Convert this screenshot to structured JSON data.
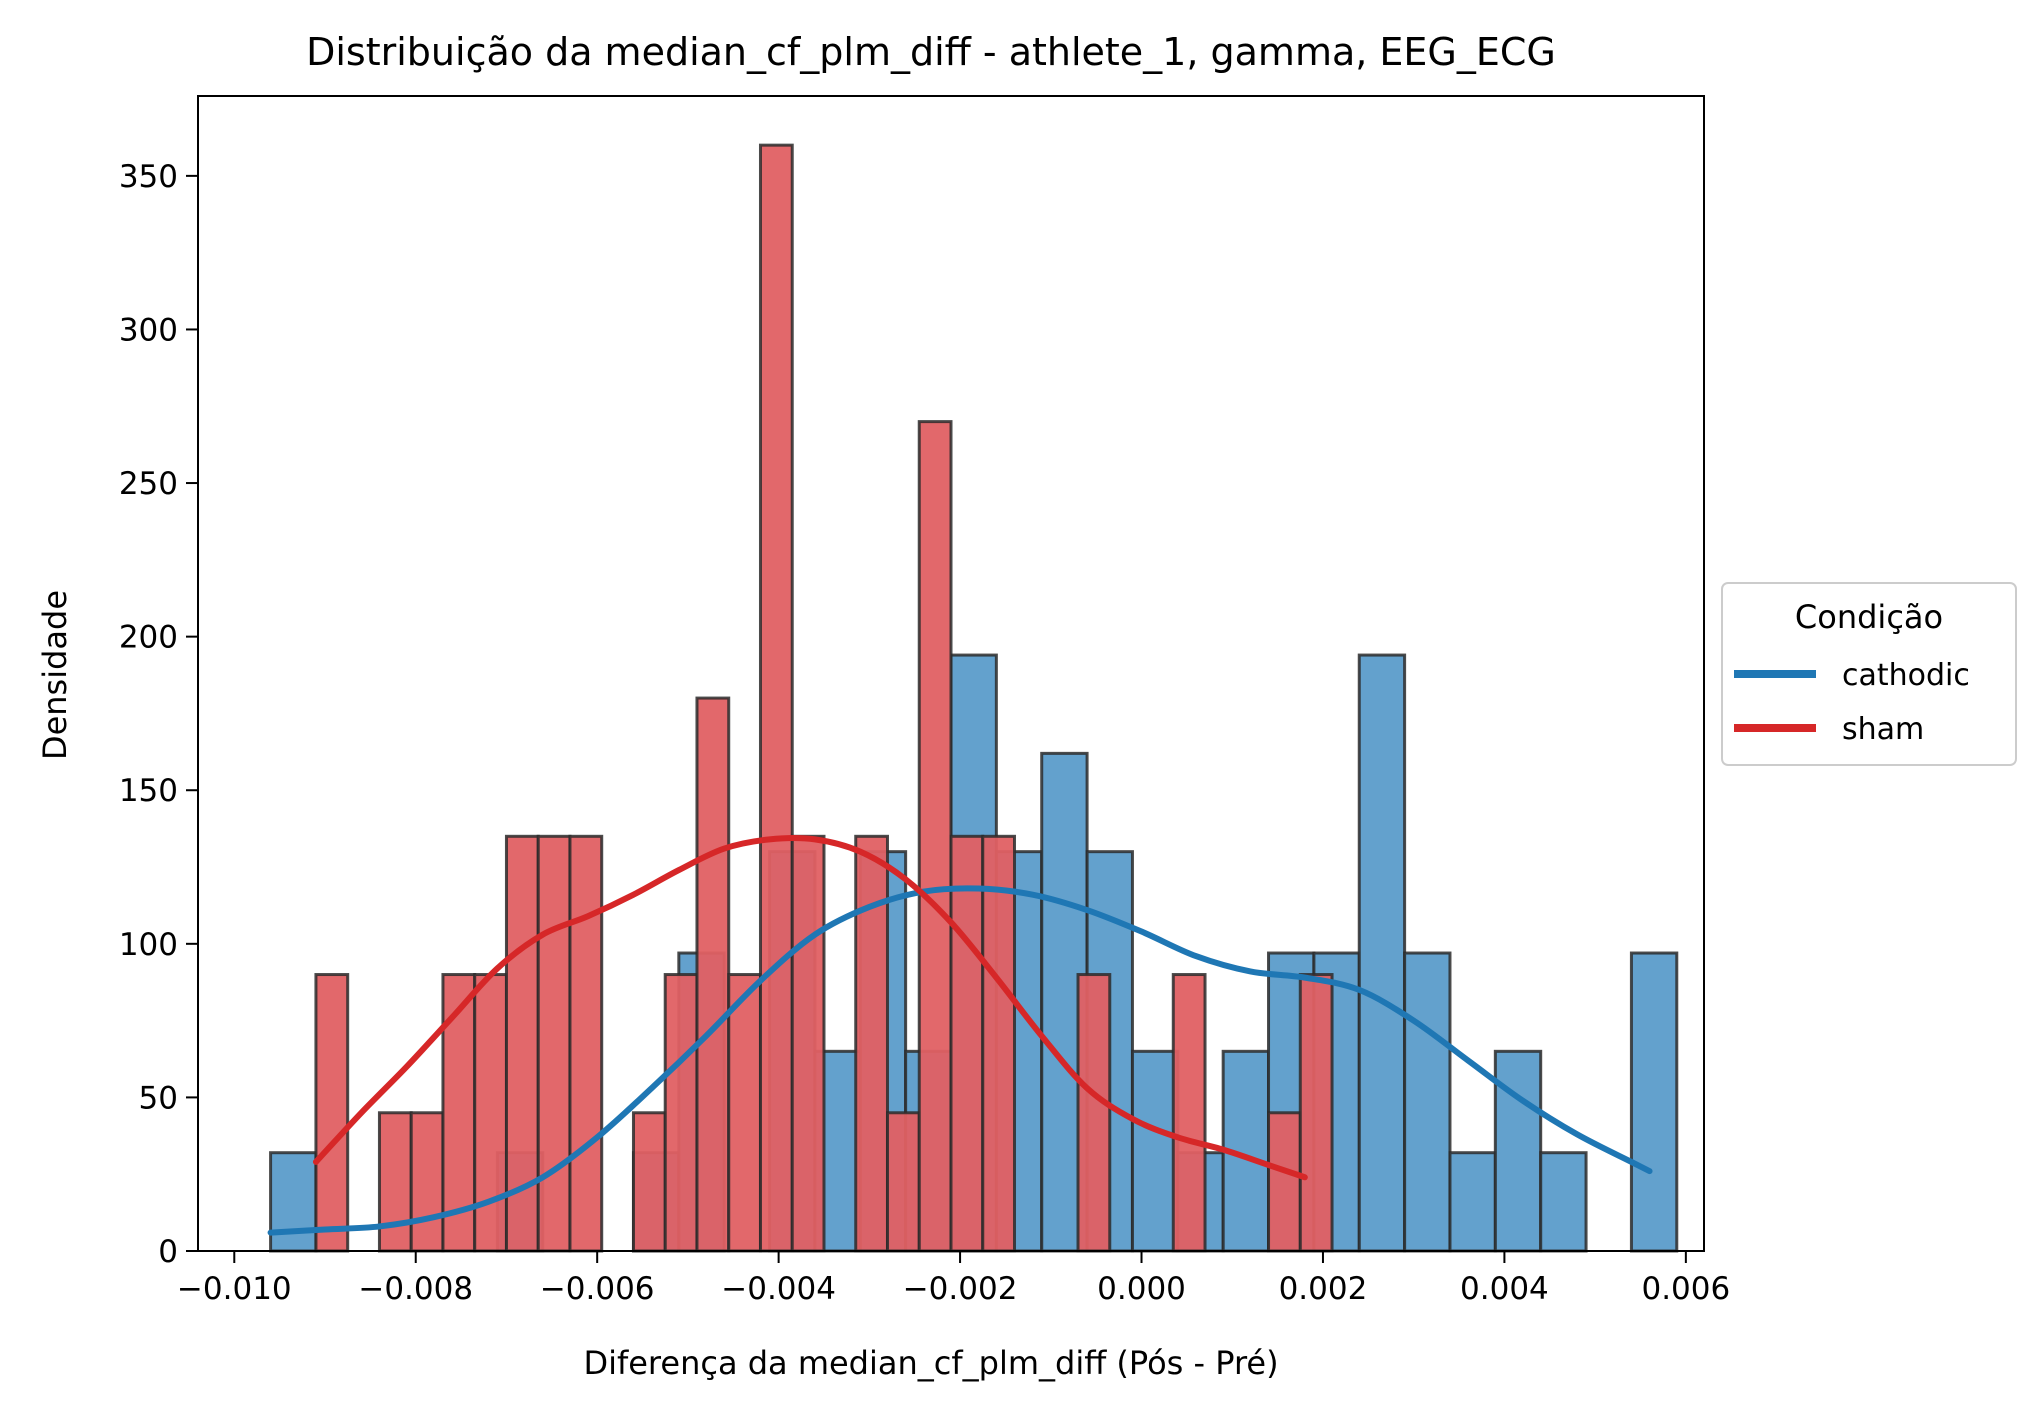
{
  "chart_data": {
    "type": "histogram",
    "title": "Distribuição da median_cf_plm_diff - athlete_1, gamma, EEG_ECG",
    "xlabel": "Diferença da median_cf_plm_diff (Pós - Pré)",
    "ylabel": "Densidade",
    "xlim": [
      -0.0104,
      0.0062
    ],
    "ylim": [
      0,
      376
    ],
    "x_ticks": [
      -0.01,
      -0.008,
      -0.006,
      -0.004,
      -0.002,
      0.0,
      0.002,
      0.004,
      0.006
    ],
    "x_tick_labels": [
      "−0.010",
      "−0.008",
      "−0.006",
      "−0.004",
      "−0.002",
      "0.000",
      "0.002",
      "0.004",
      "0.006"
    ],
    "y_ticks": [
      0,
      50,
      100,
      150,
      200,
      250,
      300,
      350
    ],
    "y_tick_labels": [
      "0",
      "50",
      "100",
      "150",
      "200",
      "250",
      "300",
      "350"
    ],
    "legend": {
      "title": "Condição",
      "placement": "center-right outside",
      "entries": [
        "cathodic",
        "sham"
      ]
    },
    "series": [
      {
        "name": "cathodic",
        "color": "#1f77b4",
        "fill": "#5b9cca",
        "bins": [
          {
            "x0": -0.0096,
            "x1": -0.0091,
            "density": 32
          },
          {
            "x0": -0.0071,
            "x1": -0.0066,
            "density": 32
          },
          {
            "x0": -0.0056,
            "x1": -0.0051,
            "density": 32
          },
          {
            "x0": -0.0051,
            "x1": -0.0046,
            "density": 97
          },
          {
            "x0": -0.0041,
            "x1": -0.0036,
            "density": 130
          },
          {
            "x0": -0.0036,
            "x1": -0.0031,
            "density": 65
          },
          {
            "x0": -0.0031,
            "x1": -0.0026,
            "density": 130
          },
          {
            "x0": -0.0026,
            "x1": -0.0021,
            "density": 65
          },
          {
            "x0": -0.0021,
            "x1": -0.0016,
            "density": 194
          },
          {
            "x0": -0.0016,
            "x1": -0.0011,
            "density": 130
          },
          {
            "x0": -0.0011,
            "x1": -0.0006,
            "density": 162
          },
          {
            "x0": -0.0006,
            "x1": -0.0001,
            "density": 130
          },
          {
            "x0": -0.0001,
            "x1": 0.0004,
            "density": 65
          },
          {
            "x0": 0.0004,
            "x1": 0.0009,
            "density": 32
          },
          {
            "x0": 0.0009,
            "x1": 0.0014,
            "density": 65
          },
          {
            "x0": 0.0014,
            "x1": 0.0019,
            "density": 97
          },
          {
            "x0": 0.0019,
            "x1": 0.0024,
            "density": 97
          },
          {
            "x0": 0.0024,
            "x1": 0.0029,
            "density": 194
          },
          {
            "x0": 0.0029,
            "x1": 0.0034,
            "density": 97
          },
          {
            "x0": 0.0034,
            "x1": 0.0039,
            "density": 32
          },
          {
            "x0": 0.0039,
            "x1": 0.0044,
            "density": 65
          },
          {
            "x0": 0.0044,
            "x1": 0.0049,
            "density": 32
          },
          {
            "x0": 0.0054,
            "x1": 0.0059,
            "density": 97
          }
        ],
        "kde": {
          "x": [
            -0.0096,
            -0.009,
            -0.0084,
            -0.0078,
            -0.0072,
            -0.0066,
            -0.006,
            -0.0054,
            -0.0048,
            -0.0042,
            -0.0036,
            -0.003,
            -0.0024,
            -0.0018,
            -0.0012,
            -0.0006,
            0.0,
            0.0006,
            0.0012,
            0.0018,
            0.0024,
            0.003,
            0.0036,
            0.0042,
            0.0048,
            0.0054,
            0.0056
          ],
          "y": [
            6,
            7,
            8,
            11,
            16,
            24,
            37,
            53,
            70,
            88,
            103,
            112,
            117,
            118,
            116,
            111,
            104,
            96,
            91,
            89,
            85,
            75,
            62,
            49,
            38,
            29,
            26
          ]
        }
      },
      {
        "name": "sham",
        "color": "#d62728",
        "fill": "#e06063",
        "bins": [
          {
            "x0": -0.0091,
            "x1": -0.00875,
            "density": 90
          },
          {
            "x0": -0.0084,
            "x1": -0.00805,
            "density": 45
          },
          {
            "x0": -0.00805,
            "x1": -0.0077,
            "density": 45
          },
          {
            "x0": -0.0077,
            "x1": -0.00735,
            "density": 90
          },
          {
            "x0": -0.00735,
            "x1": -0.007,
            "density": 90
          },
          {
            "x0": -0.007,
            "x1": -0.00665,
            "density": 135
          },
          {
            "x0": -0.00665,
            "x1": -0.0063,
            "density": 135
          },
          {
            "x0": -0.0063,
            "x1": -0.00595,
            "density": 135
          },
          {
            "x0": -0.0056,
            "x1": -0.00525,
            "density": 45
          },
          {
            "x0": -0.00525,
            "x1": -0.0049,
            "density": 90
          },
          {
            "x0": -0.0049,
            "x1": -0.00455,
            "density": 180
          },
          {
            "x0": -0.00455,
            "x1": -0.0042,
            "density": 90
          },
          {
            "x0": -0.0042,
            "x1": -0.00385,
            "density": 360
          },
          {
            "x0": -0.00385,
            "x1": -0.0035,
            "density": 135
          },
          {
            "x0": -0.00315,
            "x1": -0.0028,
            "density": 135
          },
          {
            "x0": -0.0028,
            "x1": -0.00245,
            "density": 45
          },
          {
            "x0": -0.00245,
            "x1": -0.0021,
            "density": 270
          },
          {
            "x0": -0.0021,
            "x1": -0.00175,
            "density": 135
          },
          {
            "x0": -0.00175,
            "x1": -0.0014,
            "density": 135
          },
          {
            "x0": -0.0007,
            "x1": -0.00035,
            "density": 90
          },
          {
            "x0": 0.00035,
            "x1": 0.0007,
            "density": 90
          },
          {
            "x0": 0.0014,
            "x1": 0.00175,
            "density": 45
          },
          {
            "x0": 0.00175,
            "x1": 0.0021,
            "density": 90
          }
        ],
        "kde": {
          "x": [
            -0.0091,
            -0.0086,
            -0.0081,
            -0.0076,
            -0.0071,
            -0.0066,
            -0.0061,
            -0.0056,
            -0.0051,
            -0.0046,
            -0.0041,
            -0.0036,
            -0.0031,
            -0.0026,
            -0.0021,
            -0.0016,
            -0.0011,
            -0.0006,
            -0.0001,
            0.0004,
            0.0009,
            0.0014,
            0.0018
          ],
          "y": [
            29,
            45,
            60,
            76,
            92,
            103,
            109,
            116,
            124,
            131,
            134,
            134,
            130,
            121,
            107,
            89,
            70,
            53,
            43,
            37,
            33,
            28,
            24
          ]
        }
      }
    ]
  }
}
